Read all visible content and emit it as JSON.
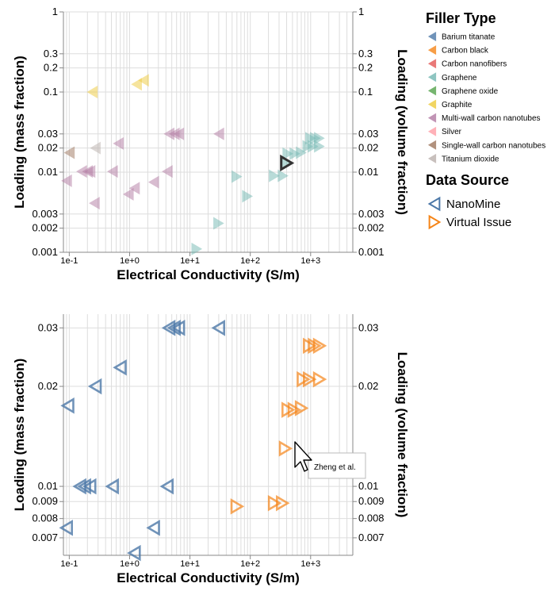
{
  "legend": {
    "filler_title": "Filler Type",
    "filler_items": [
      {
        "label": "Barium titanate",
        "color": "#4c78a8"
      },
      {
        "label": "Carbon black",
        "color": "#f58518"
      },
      {
        "label": "Carbon nanofibers",
        "color": "#e45756"
      },
      {
        "label": "Graphene",
        "color": "#72b7b2"
      },
      {
        "label": "Graphene oxide",
        "color": "#54a24b"
      },
      {
        "label": "Graphite",
        "color": "#eeca3b"
      },
      {
        "label": "Multi-wall carbon nanotubes",
        "color": "#b279a2"
      },
      {
        "label": "Silver",
        "color": "#ff9da6"
      },
      {
        "label": "Single-wall carbon nanotubes",
        "color": "#9d755d"
      },
      {
        "label": "Titanium dioxide",
        "color": "#bab0ac"
      }
    ],
    "source_title": "Data Source",
    "source_items": [
      {
        "label": "NanoMine",
        "color": "#4c78a8"
      },
      {
        "label": "Virtual Issue",
        "color": "#f58518"
      }
    ]
  },
  "tooltip": {
    "text": "Zheng et al."
  },
  "chart_data": [
    {
      "type": "scatter",
      "xlabel": "Electrical Conductivity (S/m)",
      "ylabel_left": "Loading (mass fraction)",
      "ylabel_right": "Loading (volume fraction)",
      "x_scale": "log",
      "y_scale": "log",
      "xlim": [
        0.08,
        5000
      ],
      "ylim": [
        0.001,
        1
      ],
      "x_ticks": [
        "1e-1",
        "1e+0",
        "1e+1",
        "1e+2",
        "1e+3"
      ],
      "y_ticks": [
        "0.001",
        "0.002",
        "0.003",
        "0.01",
        "0.02",
        "0.03",
        "0.1",
        "0.2",
        "0.3",
        "1"
      ],
      "grid": true,
      "points": [
        {
          "x": 0.09,
          "y": 0.0078,
          "filler": "Multi-wall carbon nanotubes",
          "dir": "left"
        },
        {
          "x": 0.16,
          "y": 0.0102,
          "filler": "Multi-wall carbon nanotubes",
          "dir": "left"
        },
        {
          "x": 0.2,
          "y": 0.0102,
          "filler": "Multi-wall carbon nanotubes",
          "dir": "left"
        },
        {
          "x": 0.22,
          "y": 0.0102,
          "filler": "Multi-wall carbon nanotubes",
          "dir": "left"
        },
        {
          "x": 0.26,
          "y": 0.0041,
          "filler": "Multi-wall carbon nanotubes",
          "dir": "left"
        },
        {
          "x": 0.52,
          "y": 0.0102,
          "filler": "Multi-wall carbon nanotubes",
          "dir": "left"
        },
        {
          "x": 0.95,
          "y": 0.0053,
          "filler": "Multi-wall carbon nanotubes",
          "dir": "left"
        },
        {
          "x": 1.2,
          "y": 0.0063,
          "filler": "Multi-wall carbon nanotubes",
          "dir": "left"
        },
        {
          "x": 2.5,
          "y": 0.0075,
          "filler": "Multi-wall carbon nanotubes",
          "dir": "left"
        },
        {
          "x": 4.2,
          "y": 0.0102,
          "filler": "Multi-wall carbon nanotubes",
          "dir": "left"
        },
        {
          "x": 4.5,
          "y": 0.03,
          "filler": "Multi-wall carbon nanotubes",
          "dir": "left"
        },
        {
          "x": 5.5,
          "y": 0.03,
          "filler": "Multi-wall carbon nanotubes",
          "dir": "left"
        },
        {
          "x": 6.5,
          "y": 0.03,
          "filler": "Multi-wall carbon nanotubes",
          "dir": "left"
        },
        {
          "x": 30,
          "y": 0.03,
          "filler": "Multi-wall carbon nanotubes",
          "dir": "left"
        },
        {
          "x": 0.1,
          "y": 0.0175,
          "filler": "Single-wall carbon nanotubes",
          "dir": "left"
        },
        {
          "x": 0.27,
          "y": 0.02,
          "filler": "Titanium dioxide",
          "dir": "left"
        },
        {
          "x": 0.65,
          "y": 0.0228,
          "filler": "Multi-wall carbon nanotubes",
          "dir": "left"
        },
        {
          "x": 0.24,
          "y": 0.1,
          "filler": "Graphite",
          "dir": "left"
        },
        {
          "x": 1.3,
          "y": 0.125,
          "filler": "Graphite",
          "dir": "left"
        },
        {
          "x": 1.7,
          "y": 0.14,
          "filler": "Graphite",
          "dir": "left"
        },
        {
          "x": 13,
          "y": 0.0011,
          "filler": "Graphene",
          "dir": "right"
        },
        {
          "x": 30,
          "y": 0.0023,
          "filler": "Graphene",
          "dir": "right"
        },
        {
          "x": 60,
          "y": 0.0088,
          "filler": "Graphene",
          "dir": "right"
        },
        {
          "x": 90,
          "y": 0.005,
          "filler": "Graphene",
          "dir": "right"
        },
        {
          "x": 250,
          "y": 0.009,
          "filler": "Graphene",
          "dir": "right"
        },
        {
          "x": 350,
          "y": 0.009,
          "filler": "Graphene",
          "dir": "right"
        },
        {
          "x": 420,
          "y": 0.017,
          "filler": "Graphene",
          "dir": "right"
        },
        {
          "x": 550,
          "y": 0.017,
          "filler": "Graphene",
          "dir": "right"
        },
        {
          "x": 700,
          "y": 0.0175,
          "filler": "Graphene",
          "dir": "right"
        },
        {
          "x": 900,
          "y": 0.021,
          "filler": "Graphene",
          "dir": "right"
        },
        {
          "x": 1100,
          "y": 0.021,
          "filler": "Graphene",
          "dir": "right"
        },
        {
          "x": 1400,
          "y": 0.021,
          "filler": "Graphene",
          "dir": "right"
        },
        {
          "x": 1000,
          "y": 0.0265,
          "filler": "Graphene",
          "dir": "right"
        },
        {
          "x": 1200,
          "y": 0.0265,
          "filler": "Graphene",
          "dir": "right"
        },
        {
          "x": 1400,
          "y": 0.0265,
          "filler": "Graphene",
          "dir": "right"
        },
        {
          "x": 400,
          "y": 0.013,
          "filler": "Graphene",
          "dir": "right",
          "highlight": true
        }
      ]
    },
    {
      "type": "scatter",
      "xlabel": "Electrical Conductivity (S/m)",
      "ylabel_left": "Loading (mass fraction)",
      "ylabel_right": "Loading (volume fraction)",
      "x_scale": "log",
      "y_scale": "log",
      "xlim": [
        0.08,
        5000
      ],
      "ylim": [
        0.0062,
        0.033
      ],
      "x_ticks": [
        "1e-1",
        "1e+0",
        "1e+1",
        "1e+2",
        "1e+3"
      ],
      "y_ticks": [
        "0.007",
        "0.008",
        "0.009",
        "0.01",
        "0.02",
        "0.03"
      ],
      "grid": true,
      "points": [
        {
          "x": 0.09,
          "y": 0.0075,
          "source": "NanoMine",
          "dir": "left"
        },
        {
          "x": 0.095,
          "y": 0.0175,
          "source": "NanoMine",
          "dir": "left"
        },
        {
          "x": 0.15,
          "y": 0.01,
          "source": "NanoMine",
          "dir": "left"
        },
        {
          "x": 0.18,
          "y": 0.01,
          "source": "NanoMine",
          "dir": "left"
        },
        {
          "x": 0.22,
          "y": 0.01,
          "source": "NanoMine",
          "dir": "left"
        },
        {
          "x": 0.27,
          "y": 0.02,
          "source": "NanoMine",
          "dir": "left"
        },
        {
          "x": 0.52,
          "y": 0.01,
          "source": "NanoMine",
          "dir": "left"
        },
        {
          "x": 0.7,
          "y": 0.0228,
          "source": "NanoMine",
          "dir": "left"
        },
        {
          "x": 1.2,
          "y": 0.0063,
          "source": "NanoMine",
          "dir": "left"
        },
        {
          "x": 2.5,
          "y": 0.0075,
          "source": "NanoMine",
          "dir": "left"
        },
        {
          "x": 4.2,
          "y": 0.01,
          "source": "NanoMine",
          "dir": "left"
        },
        {
          "x": 4.5,
          "y": 0.03,
          "source": "NanoMine",
          "dir": "left"
        },
        {
          "x": 5.5,
          "y": 0.03,
          "source": "NanoMine",
          "dir": "left"
        },
        {
          "x": 6.5,
          "y": 0.03,
          "source": "NanoMine",
          "dir": "left"
        },
        {
          "x": 30,
          "y": 0.03,
          "source": "NanoMine",
          "dir": "left"
        },
        {
          "x": 60,
          "y": 0.0087,
          "source": "Virtual Issue",
          "dir": "right"
        },
        {
          "x": 250,
          "y": 0.0089,
          "source": "Virtual Issue",
          "dir": "right"
        },
        {
          "x": 340,
          "y": 0.0089,
          "source": "Virtual Issue",
          "dir": "right"
        },
        {
          "x": 380,
          "y": 0.013,
          "source": "Virtual Issue",
          "dir": "right"
        },
        {
          "x": 420,
          "y": 0.017,
          "source": "Virtual Issue",
          "dir": "right"
        },
        {
          "x": 530,
          "y": 0.017,
          "source": "Virtual Issue",
          "dir": "right"
        },
        {
          "x": 700,
          "y": 0.0172,
          "source": "Virtual Issue",
          "dir": "right"
        },
        {
          "x": 750,
          "y": 0.021,
          "source": "Virtual Issue",
          "dir": "right"
        },
        {
          "x": 950,
          "y": 0.021,
          "source": "Virtual Issue",
          "dir": "right"
        },
        {
          "x": 1400,
          "y": 0.021,
          "source": "Virtual Issue",
          "dir": "right"
        },
        {
          "x": 950,
          "y": 0.0265,
          "source": "Virtual Issue",
          "dir": "right"
        },
        {
          "x": 1150,
          "y": 0.0265,
          "source": "Virtual Issue",
          "dir": "right"
        },
        {
          "x": 1400,
          "y": 0.0265,
          "source": "Virtual Issue",
          "dir": "right"
        }
      ]
    }
  ]
}
